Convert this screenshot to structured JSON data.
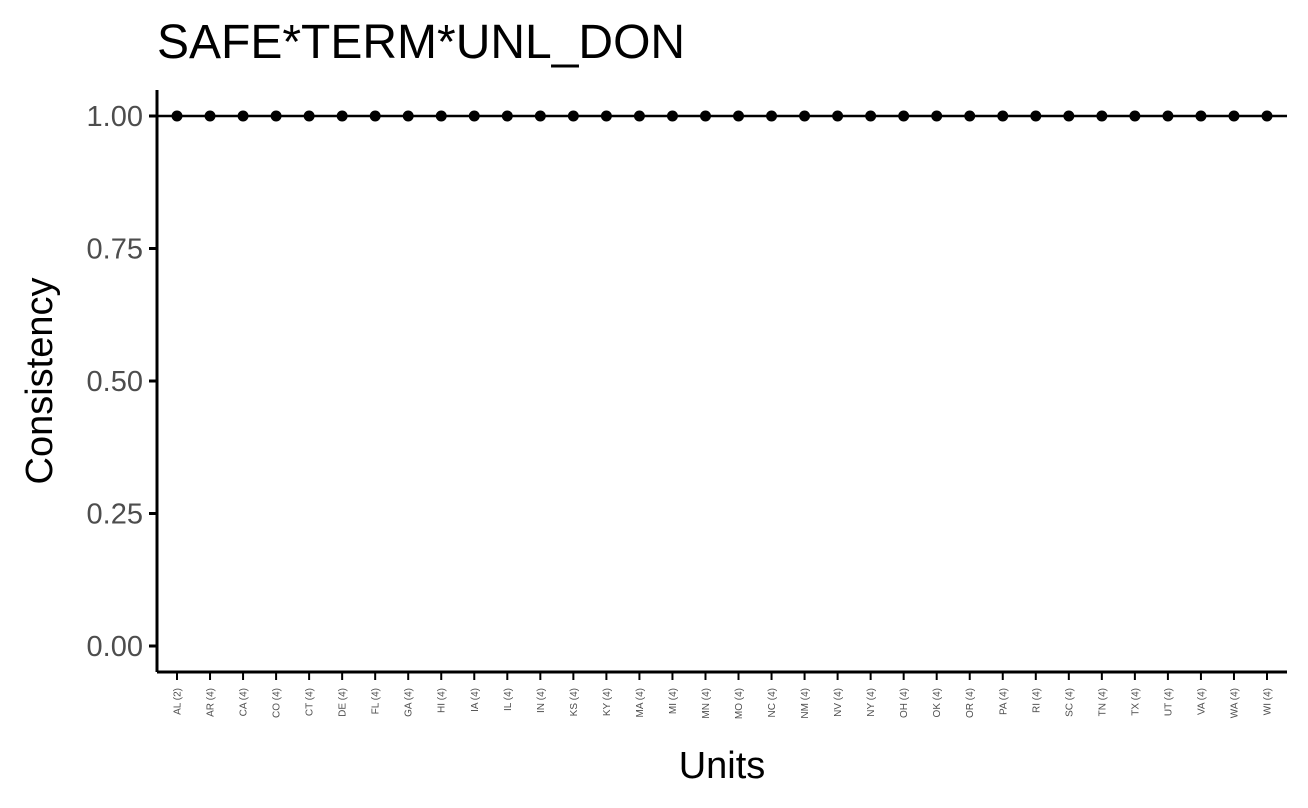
{
  "chart_data": {
    "type": "scatter",
    "title": "SAFE*TERM*UNL_DON",
    "xlabel": "Units",
    "ylabel": "Consistency",
    "categories": [
      "AL (2)",
      "AR (4)",
      "CA (4)",
      "CO (4)",
      "CT (4)",
      "DE (4)",
      "FL (4)",
      "GA (4)",
      "HI (4)",
      "IA (4)",
      "IL (4)",
      "IN (4)",
      "KS (4)",
      "KY (4)",
      "MA (4)",
      "MI (4)",
      "MN (4)",
      "MO (4)",
      "NC (4)",
      "NM (4)",
      "NV (4)",
      "NY (4)",
      "OH (4)",
      "OK (4)",
      "OR (4)",
      "PA (4)",
      "RI (4)",
      "SC (4)",
      "TN (4)",
      "TX (4)",
      "UT (4)",
      "VA (4)",
      "WA (4)",
      "WI (4)"
    ],
    "values": [
      1,
      1,
      1,
      1,
      1,
      1,
      1,
      1,
      1,
      1,
      1,
      1,
      1,
      1,
      1,
      1,
      1,
      1,
      1,
      1,
      1,
      1,
      1,
      1,
      1,
      1,
      1,
      1,
      1,
      1,
      1,
      1,
      1,
      1
    ],
    "reference_line": 1.0,
    "ylim": [
      0,
      1
    ],
    "yticks": [
      "0.00",
      "0.25",
      "0.50",
      "0.75",
      "1.00"
    ],
    "ytick_values": [
      0,
      0.25,
      0.5,
      0.75,
      1.0
    ],
    "grid": false,
    "colors": {
      "points": "#000000",
      "axis": "#000000",
      "tick_text": "#4d4d4d"
    }
  }
}
